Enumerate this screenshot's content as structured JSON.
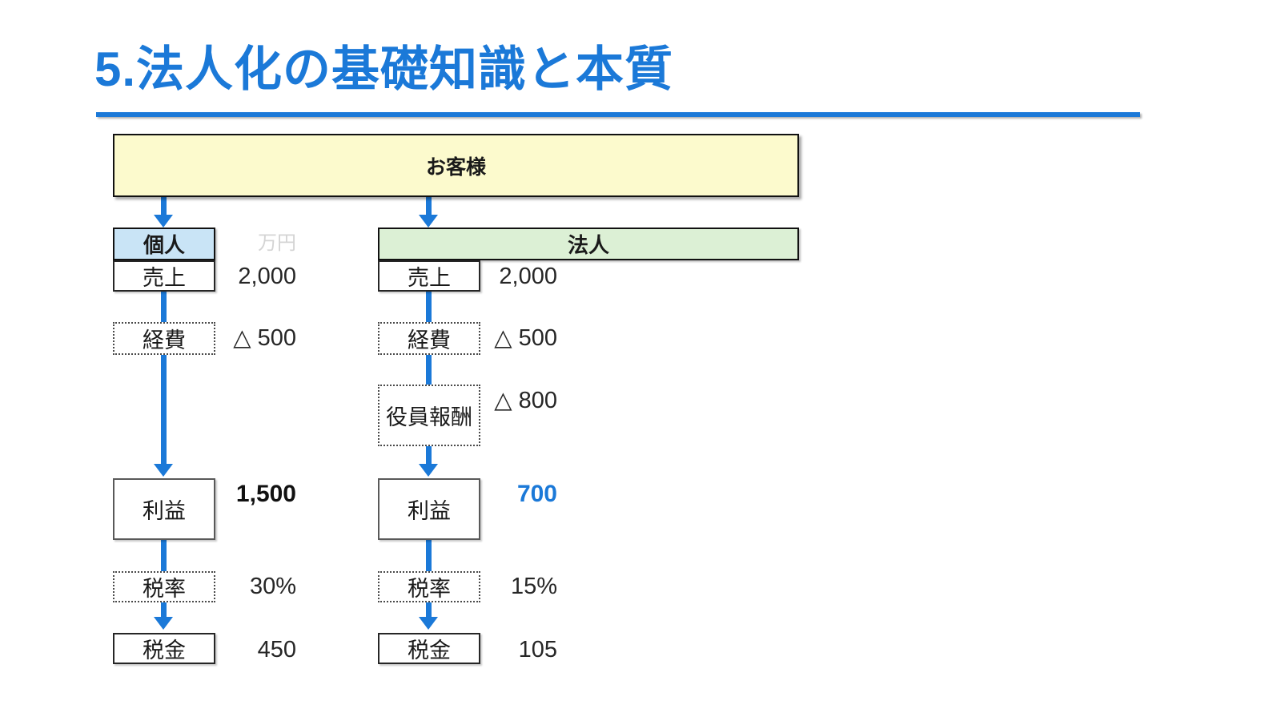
{
  "title": {
    "text": "5.法人化の基礎知識と本質"
  },
  "customer_box": {
    "label": "お客様"
  },
  "unit_label": "万円",
  "individual": {
    "header": "個人",
    "rows": {
      "sales": {
        "label": "売上",
        "value": "2,000"
      },
      "expenses": {
        "label": "経費",
        "value": "△ 500"
      },
      "profit": {
        "label": "利益",
        "value": "1,500"
      },
      "tax_rate": {
        "label": "税率",
        "value": "30%"
      },
      "tax": {
        "label": "税金",
        "value": "450"
      }
    }
  },
  "corporate": {
    "header": "法人",
    "rows": {
      "sales": {
        "label": "売上",
        "value": "2,000"
      },
      "expenses": {
        "label": "経費",
        "value": "△ 500"
      },
      "executive_compensation": {
        "label": "役員報酬",
        "value": "△ 800"
      },
      "profit": {
        "label": "利益",
        "value": "700"
      },
      "tax_rate": {
        "label": "税率",
        "value": "15%"
      },
      "tax": {
        "label": "税金",
        "value": "105"
      }
    }
  },
  "colors": {
    "accent_blue": "#1B79D8",
    "customer_fill": "#FCFACD",
    "individual_fill": "#C9E4F6",
    "corporate_fill": "#DCF0D5",
    "profit_value_blue": "#1B79D8",
    "unit_label_gray": "#D4D4D4"
  }
}
